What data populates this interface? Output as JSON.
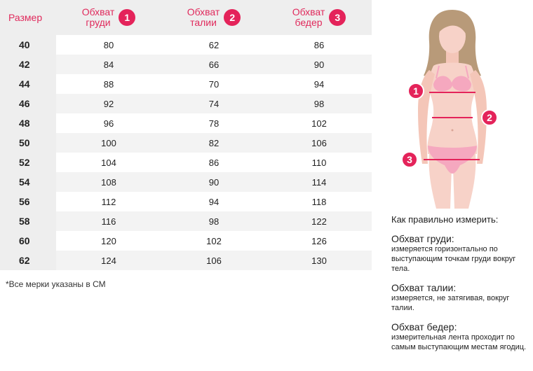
{
  "table": {
    "size_header": "Размер",
    "columns": [
      {
        "label_line1": "Обхват",
        "label_line2": "груди",
        "number": "1"
      },
      {
        "label_line1": "Обхват",
        "label_line2": "талии",
        "number": "2"
      },
      {
        "label_line1": "Обхват",
        "label_line2": "бедер",
        "number": "3"
      }
    ],
    "rows": [
      {
        "size": "40",
        "values": [
          "80",
          "62",
          "86"
        ]
      },
      {
        "size": "42",
        "values": [
          "84",
          "66",
          "90"
        ]
      },
      {
        "size": "44",
        "values": [
          "88",
          "70",
          "94"
        ]
      },
      {
        "size": "46",
        "values": [
          "92",
          "74",
          "98"
        ]
      },
      {
        "size": "48",
        "values": [
          "96",
          "78",
          "102"
        ]
      },
      {
        "size": "50",
        "values": [
          "100",
          "82",
          "106"
        ]
      },
      {
        "size": "52",
        "values": [
          "104",
          "86",
          "110"
        ]
      },
      {
        "size": "54",
        "values": [
          "108",
          "90",
          "114"
        ]
      },
      {
        "size": "56",
        "values": [
          "112",
          "94",
          "118"
        ]
      },
      {
        "size": "58",
        "values": [
          "116",
          "98",
          "122"
        ]
      },
      {
        "size": "60",
        "values": [
          "120",
          "102",
          "126"
        ]
      },
      {
        "size": "62",
        "values": [
          "124",
          "106",
          "130"
        ]
      }
    ]
  },
  "footnote": "*Все мерки указаны в СМ",
  "figure": {
    "markers": [
      "1",
      "2",
      "3"
    ],
    "accent_color": "#e4235a",
    "skin_color": "#f7d2c8",
    "underwear_color": "#f5a8bf"
  },
  "guide": {
    "title": "Как правильно измерить:",
    "items": [
      {
        "heading": "Обхват груди:",
        "desc": "измеряется горизонтально по выступающим точкам груди вокруг тела."
      },
      {
        "heading": "Обхват талии:",
        "desc": "измеряется, не затягивая, вокруг талии."
      },
      {
        "heading": "Обхват бедер:",
        "desc": "измерительная лента проходит по самым выступающим местам ягодиц."
      }
    ]
  }
}
